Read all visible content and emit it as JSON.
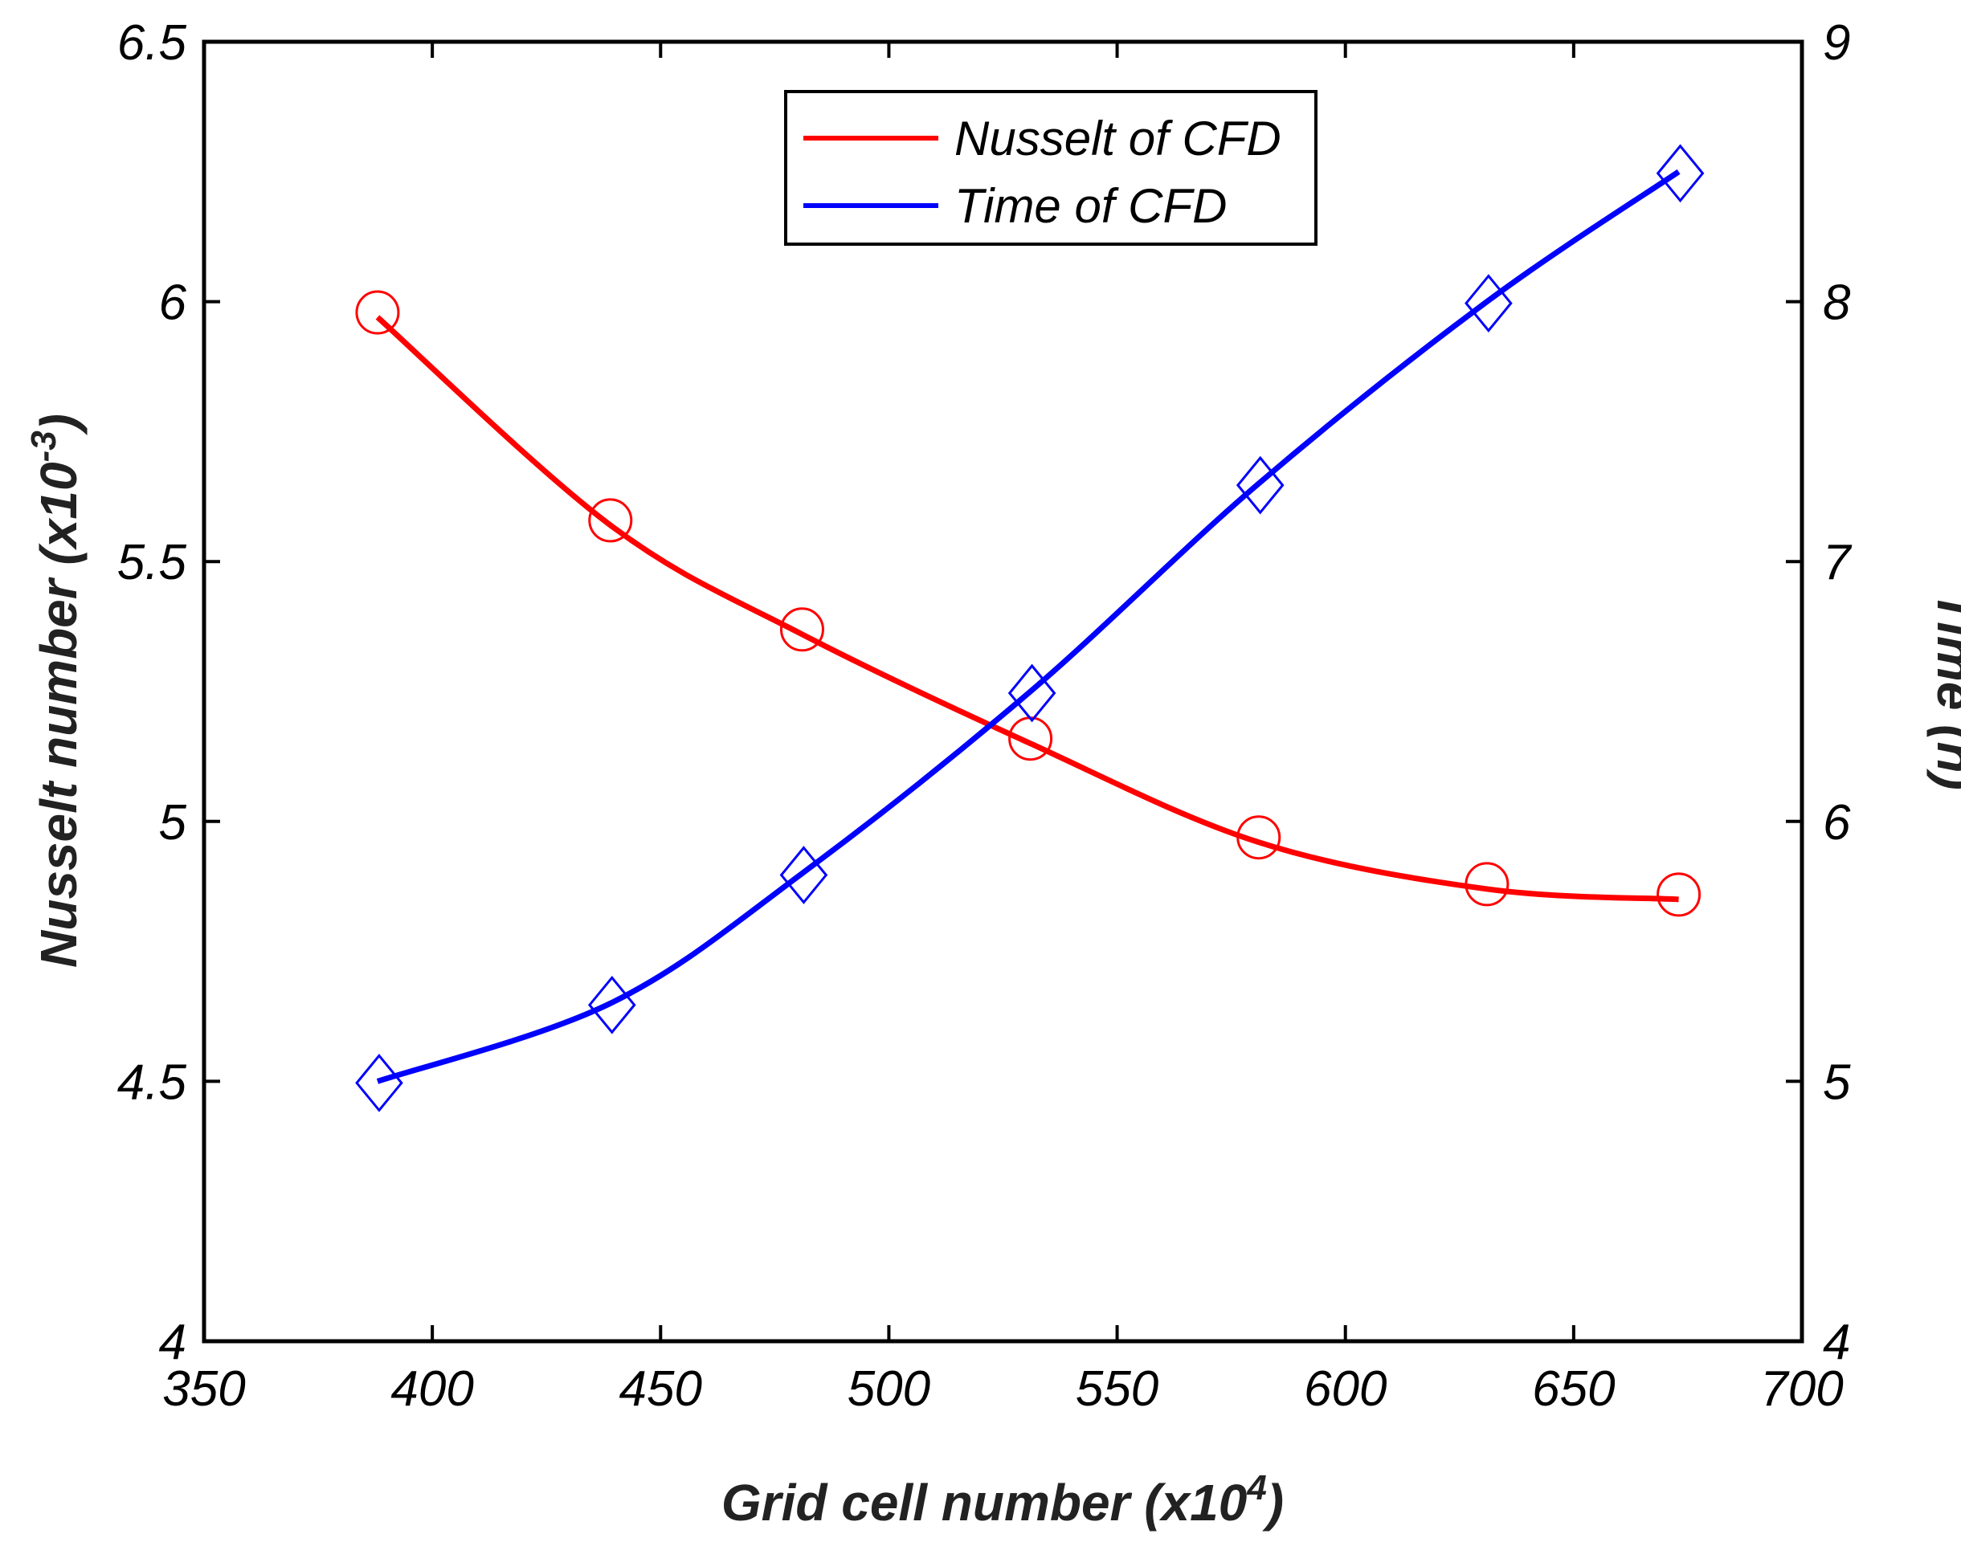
{
  "chart_data": {
    "type": "line",
    "title": "",
    "xlabel": {
      "main": "Grid cell number (x10",
      "sup": "4",
      "close": ")"
    },
    "ylabel_left": {
      "main": "Nusselt number (x10",
      "sup": "-3",
      "close": ")"
    },
    "ylabel_right": "Time (h)",
    "xlim": [
      350,
      700
    ],
    "ylim_left": [
      4,
      6.5
    ],
    "ylim_right": [
      4,
      9
    ],
    "x_ticks": [
      350,
      400,
      450,
      500,
      550,
      600,
      650,
      700
    ],
    "x_tick_labels": [
      "350",
      "400",
      "450",
      "500",
      "550",
      "600",
      "650",
      "700"
    ],
    "y_left_ticks": [
      4,
      4.5,
      5,
      5.5,
      6,
      6.5
    ],
    "y_left_tick_labels": [
      "4",
      "4.5",
      "5",
      "5.5",
      "6",
      "6.5"
    ],
    "y_right_ticks": [
      4,
      5,
      6,
      7,
      8,
      9
    ],
    "y_right_tick_labels": [
      "4",
      "5",
      "6",
      "7",
      "8",
      "9"
    ],
    "x": [
      388,
      439,
      481,
      531,
      581,
      631,
      673
    ],
    "series": [
      {
        "name": "Nusselt of CFD",
        "axis": "left",
        "color": "#ff0000",
        "marker": "circle",
        "values": [
          5.97,
          5.57,
          5.36,
          5.15,
          4.96,
          4.87,
          4.85
        ]
      },
      {
        "name": "Time of CFD",
        "axis": "right",
        "color": "#0000ff",
        "marker": "diamond",
        "values": [
          5.0,
          5.3,
          5.8,
          6.5,
          7.3,
          8.0,
          8.5
        ]
      }
    ],
    "legend": {
      "position": "top-center",
      "entries": [
        "Nusselt of CFD",
        "Time of CFD"
      ]
    },
    "grid": false
  }
}
